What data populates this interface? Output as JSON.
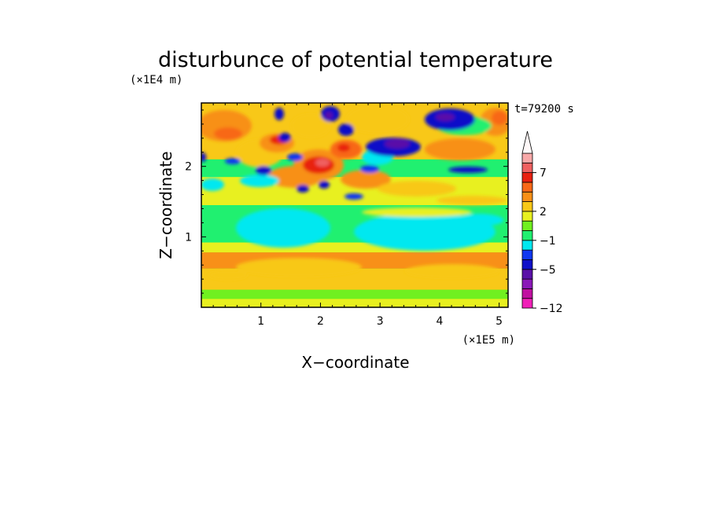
{
  "chart_data": {
    "type": "heatmap",
    "title": "disturbunce of potential temperature",
    "xlabel": "X−coordinate",
    "ylabel": "Z−coordinate",
    "x_unit": "(×1E5 m)",
    "z_unit": "(×1E4 m)",
    "time_label": "t=79200 s",
    "xlim": [
      0,
      5.15
    ],
    "ylim": [
      0,
      2.9
    ],
    "x_ticks": [
      1,
      2,
      3,
      4,
      5
    ],
    "y_ticks": [
      1,
      2
    ],
    "x_tick_labels": [
      "1",
      "2",
      "3",
      "4",
      "5"
    ],
    "y_tick_labels": [
      "1",
      "2"
    ],
    "colorbar": {
      "levels_bottom_to_top": [
        -12,
        -10,
        -8,
        -6.5,
        -5,
        -3.5,
        -2,
        -1,
        0,
        1,
        2,
        3,
        4,
        5.5,
        7,
        8,
        9
      ],
      "labeled_levels": [
        "−12",
        "−5",
        "−1",
        "2",
        "7"
      ],
      "colors_bottom_to_top": [
        "#f020b8",
        "#c010a0",
        "#8a18b8",
        "#5a10a8",
        "#1010c8",
        "#1038f0",
        "#00e8f0",
        "#20f070",
        "#70f020",
        "#e8f020",
        "#f8c818",
        "#f89018",
        "#f86818",
        "#e82010",
        "#f06060",
        "#f8a8a8"
      ],
      "extend_max": true
    },
    "bands": [
      {
        "z": [
          0.0,
          0.12
        ],
        "level": 1
      },
      {
        "z": [
          0.12,
          0.25
        ],
        "level": 0
      },
      {
        "z": [
          0.25,
          0.55
        ],
        "level": 2
      },
      {
        "z": [
          0.55,
          0.78
        ],
        "level": 3
      },
      {
        "z": [
          0.78,
          0.92
        ],
        "level": 1
      },
      {
        "z": [
          0.92,
          1.45
        ],
        "level": -1
      },
      {
        "z": [
          1.45,
          1.85
        ],
        "level": 1
      },
      {
        "z": [
          1.85,
          2.1
        ],
        "level": -1
      },
      {
        "z": [
          2.1,
          2.9
        ],
        "level": 2
      }
    ],
    "features": [
      {
        "x": 3.3,
        "z": 2.3,
        "level": -6.5
      },
      {
        "x": 4.05,
        "z": 2.7,
        "level": -5
      },
      {
        "x": 2.35,
        "z": 2.85,
        "level": -5
      },
      {
        "x": 2.1,
        "z": 2.05,
        "level": 7
      },
      {
        "x": 2.65,
        "z": 2.35,
        "level": 5.5
      },
      {
        "x": 1.6,
        "z": 2.5,
        "level": 4
      },
      {
        "x": 0.3,
        "z": 2.65,
        "level": 4
      },
      {
        "x": 4.95,
        "z": 2.65,
        "level": 4
      },
      {
        "x": 3.2,
        "z": 1.05,
        "level": -1
      },
      {
        "x": 1.8,
        "z": 1.2,
        "level": -1
      },
      {
        "x": 2.1,
        "z": 0.62,
        "level": 3
      }
    ]
  }
}
